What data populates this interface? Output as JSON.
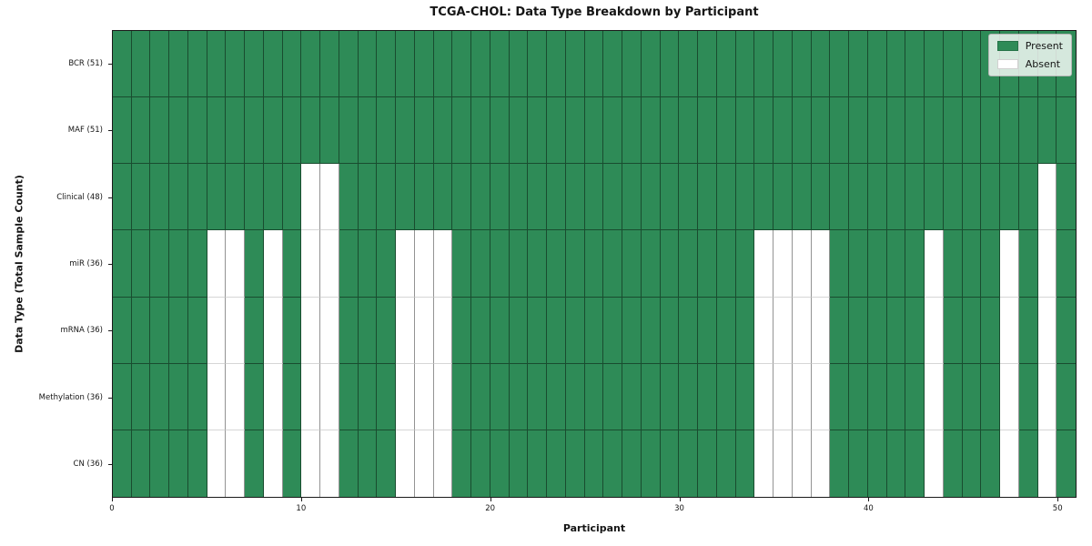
{
  "chart_data": {
    "type": "heatmap",
    "title": "TCGA-CHOL: Data Type Breakdown by Participant",
    "xlabel": "Participant",
    "ylabel": "Data Type (Total Sample Count)",
    "n_participants": 51,
    "x_ticks": [
      0,
      10,
      20,
      30,
      40,
      50
    ],
    "x_range": [
      0,
      51
    ],
    "grid": true,
    "present_color": "#2e8b57",
    "absent_color": "#ffffff",
    "legend_position": "upper right",
    "legend": [
      {
        "label": "Present",
        "color": "#2e8b57"
      },
      {
        "label": "Absent",
        "color": "#ffffff"
      }
    ],
    "rows": [
      {
        "label": "BCR (51)",
        "present_count": 51,
        "absent_participants": []
      },
      {
        "label": "MAF (51)",
        "present_count": 51,
        "absent_participants": []
      },
      {
        "label": "Clinical (48)",
        "present_count": 48,
        "absent_participants": [
          10,
          11,
          49
        ]
      },
      {
        "label": "miR (36)",
        "present_count": 36,
        "absent_participants": [
          5,
          6,
          8,
          10,
          11,
          15,
          16,
          17,
          34,
          35,
          36,
          37,
          43,
          47,
          49
        ]
      },
      {
        "label": "mRNA (36)",
        "present_count": 36,
        "absent_participants": [
          5,
          6,
          8,
          10,
          11,
          15,
          16,
          17,
          34,
          35,
          36,
          37,
          43,
          47,
          49
        ]
      },
      {
        "label": "Methylation (36)",
        "present_count": 36,
        "absent_participants": [
          5,
          6,
          8,
          10,
          11,
          15,
          16,
          17,
          34,
          35,
          36,
          37,
          43,
          47,
          49
        ]
      },
      {
        "label": "CN (36)",
        "present_count": 36,
        "absent_participants": [
          5,
          6,
          8,
          10,
          11,
          15,
          16,
          17,
          34,
          35,
          36,
          37,
          43,
          47,
          49
        ]
      }
    ]
  }
}
